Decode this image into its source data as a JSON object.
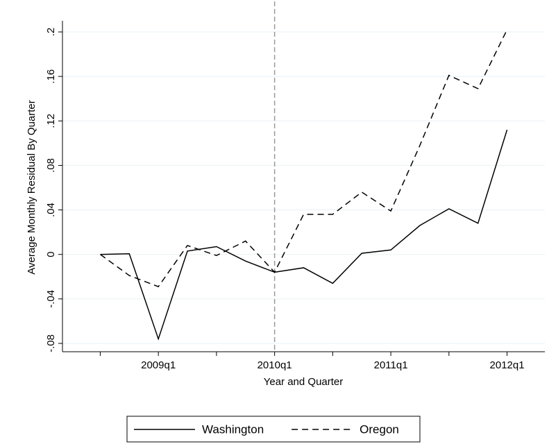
{
  "chart_data": {
    "type": "line",
    "xlabel": "Year and Quarter",
    "ylabel": "Average Monthly Residual By Quarter",
    "x": [
      194,
      195,
      196,
      197,
      198,
      199,
      200,
      201,
      202,
      203,
      204,
      205,
      206,
      207,
      208
    ],
    "series": [
      {
        "name": "Washington",
        "color": "#000000",
        "style": "solid",
        "values": [
          0,
          0.0006,
          -0.076,
          0.003,
          0.007,
          -0.006,
          -0.016,
          -0.012,
          -0.026,
          0.001,
          0.004,
          0.026,
          0.041,
          0.028,
          0.112
        ]
      },
      {
        "name": "Oregon",
        "color": "#000000",
        "style": "dashed",
        "values": [
          0,
          -0.019,
          -0.029,
          0.008,
          -0.001,
          0.012,
          -0.016,
          0.036,
          0.036,
          0.056,
          0.039,
          0.098,
          0.161,
          0.149,
          0.202
        ]
      }
    ],
    "xlim": [
      192.7,
      209.3
    ],
    "xticks": [
      {
        "value": 196,
        "label": "2009q1"
      },
      {
        "value": 200,
        "label": "2010q1"
      },
      {
        "value": 204,
        "label": "2011q1"
      },
      {
        "value": 208,
        "label": "2012q1"
      }
    ],
    "xminorticks": [
      194,
      198,
      202,
      206
    ],
    "ylim": [
      -0.0875,
      0.21
    ],
    "yticks": [
      {
        "value": -0.08,
        "label": "-.08"
      },
      {
        "value": -0.04,
        "label": "-.04"
      },
      0,
      {
        "value": 0.04,
        "label": ".04"
      },
      {
        "value": 0.08,
        "label": ".08"
      },
      {
        "value": 0.12,
        "label": ".12"
      },
      {
        "value": 0.16,
        "label": ".16"
      },
      {
        "value": 0.2,
        "label": ".2"
      }
    ],
    "vline": 200,
    "grid": true,
    "legend": "bottom"
  }
}
